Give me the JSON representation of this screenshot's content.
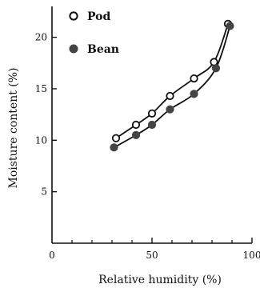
{
  "chart_data": {
    "type": "scatter",
    "xlabel": "Relative humidity (%)",
    "ylabel": "Moisture content (%)",
    "xlim": [
      0,
      100
    ],
    "ylim": [
      0,
      23
    ],
    "x_ticks": [
      0,
      50,
      100
    ],
    "x_minor_ticks": [
      10,
      20,
      30,
      40,
      60,
      70,
      80,
      90
    ],
    "y_ticks": [
      5,
      10,
      15,
      20
    ],
    "grid": false,
    "legend_position": "top-left",
    "series": [
      {
        "name": "Pod",
        "marker": "open-circle",
        "color": "#111111",
        "x": [
          32,
          42,
          50,
          59,
          71,
          81,
          88
        ],
        "y": [
          10.2,
          11.5,
          12.6,
          14.3,
          16.0,
          17.6,
          21.3
        ]
      },
      {
        "name": "Bean",
        "marker": "filled-circle",
        "color": "#444444",
        "x": [
          31,
          42,
          50,
          59,
          71,
          82,
          89
        ],
        "y": [
          9.3,
          10.5,
          11.5,
          13.0,
          14.5,
          17.0,
          21.1
        ]
      }
    ]
  }
}
